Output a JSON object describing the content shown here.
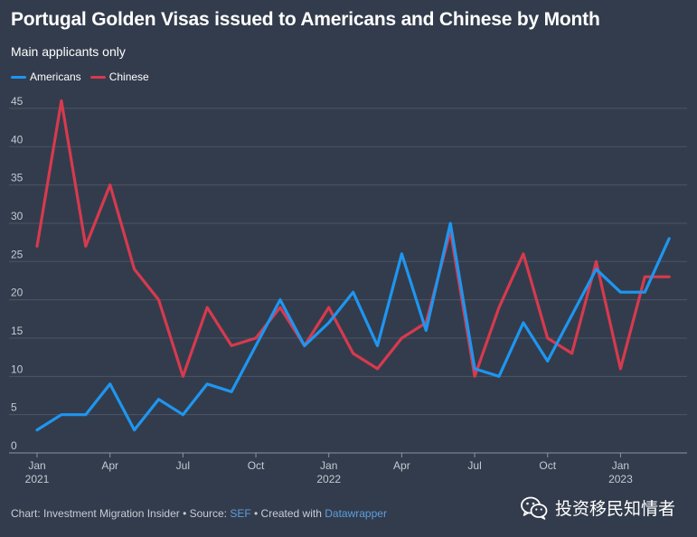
{
  "title": "Portugal Golden Visas issued to Americans and Chinese by Month",
  "subtitle": "Main applicants only",
  "footer": {
    "prefix": "Chart: Investment Migration Insider • Source: ",
    "source_link": "SEF",
    "middle": " • Created with ",
    "tool_link": "Datawrapper"
  },
  "watermark": {
    "text": "投资移民知情者",
    "icon": "wechat-icon"
  },
  "colors": {
    "background": "#333c4c",
    "americans": "#1e96f0",
    "chinese": "#d63a4e",
    "grid": "#4b5566",
    "link": "#5b9fe0"
  },
  "chart_data": {
    "type": "line",
    "x": [
      "2021-01",
      "2021-02",
      "2021-03",
      "2021-04",
      "2021-05",
      "2021-06",
      "2021-07",
      "2021-08",
      "2021-09",
      "2021-10",
      "2021-11",
      "2021-12",
      "2022-01",
      "2022-02",
      "2022-03",
      "2022-04",
      "2022-05",
      "2022-06",
      "2022-07",
      "2022-08",
      "2022-09",
      "2022-10",
      "2022-11",
      "2022-12",
      "2023-01",
      "2023-02",
      "2023-03"
    ],
    "series": [
      {
        "name": "Americans",
        "color": "#1e96f0",
        "values": [
          3,
          5,
          5,
          9,
          3,
          7,
          5,
          9,
          8,
          14,
          20,
          14,
          17,
          21,
          14,
          26,
          16,
          30,
          11,
          10,
          17,
          12,
          18,
          24,
          21,
          21,
          28
        ]
      },
      {
        "name": "Chinese",
        "color": "#d63a4e",
        "values": [
          27,
          46,
          27,
          35,
          24,
          20,
          10,
          19,
          14,
          15,
          19,
          14,
          19,
          13,
          11,
          15,
          17,
          29,
          10,
          19,
          26,
          15,
          13,
          25,
          11,
          23,
          23
        ]
      }
    ],
    "x_ticks": [
      {
        "index": 0,
        "label": "Jan",
        "sublabel": "2021"
      },
      {
        "index": 3,
        "label": "Apr",
        "sublabel": ""
      },
      {
        "index": 6,
        "label": "Jul",
        "sublabel": ""
      },
      {
        "index": 9,
        "label": "Oct",
        "sublabel": ""
      },
      {
        "index": 12,
        "label": "Jan",
        "sublabel": "2022"
      },
      {
        "index": 15,
        "label": "Apr",
        "sublabel": ""
      },
      {
        "index": 18,
        "label": "Jul",
        "sublabel": ""
      },
      {
        "index": 21,
        "label": "Oct",
        "sublabel": ""
      },
      {
        "index": 24,
        "label": "Jan",
        "sublabel": "2023"
      }
    ],
    "y_ticks": [
      0,
      5,
      10,
      15,
      20,
      25,
      30,
      35,
      40,
      45
    ],
    "ylim": [
      0,
      47
    ],
    "grid": true,
    "legend_position": "top-left"
  }
}
